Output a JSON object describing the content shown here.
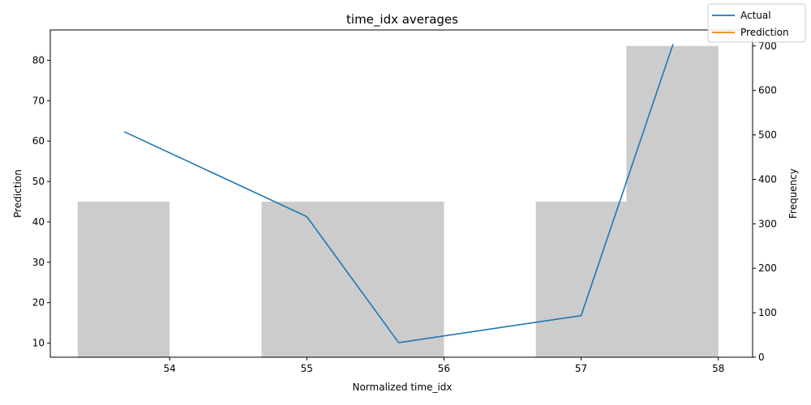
{
  "chart_data": {
    "type": "bar+line",
    "title": "time_idx averages",
    "xlabel": "Normalized time_idx",
    "ylabel_left": "Prediction",
    "ylabel_right": "Frequency",
    "xlim": [
      53.13,
      58.25
    ],
    "ylim_left": [
      6.5,
      87.5
    ],
    "ylim_right": [
      0,
      736
    ],
    "x_ticks": [
      54,
      55,
      56,
      57,
      58
    ],
    "y_ticks_left": [
      10,
      20,
      30,
      40,
      50,
      60,
      70,
      80
    ],
    "y_ticks_right": [
      0,
      100,
      200,
      300,
      400,
      500,
      600,
      700
    ],
    "histogram": {
      "color": "#cccccc",
      "bins": [
        {
          "x0": 53.33,
          "x1": 54.0,
          "count": 350
        },
        {
          "x0": 54.67,
          "x1": 55.33,
          "count": 350
        },
        {
          "x0": 55.33,
          "x1": 56.0,
          "count": 350
        },
        {
          "x0": 56.67,
          "x1": 57.33,
          "count": 350
        },
        {
          "x0": 57.33,
          "x1": 58.0,
          "count": 700
        }
      ]
    },
    "series": [
      {
        "name": "Actual",
        "color": "#1f77b4",
        "x": [
          53.67,
          55.0,
          55.67,
          57.0,
          57.67
        ],
        "y": [
          62.3,
          41.3,
          10.1,
          16.8,
          84.0
        ]
      },
      {
        "name": "Prediction",
        "color": "#ff7f0e",
        "x": [],
        "y": []
      }
    ],
    "legend_position": "top-right"
  }
}
